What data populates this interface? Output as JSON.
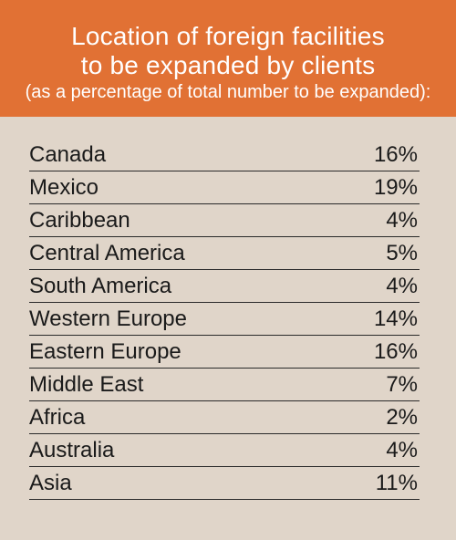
{
  "header": {
    "title_line1": "Location of foreign facilities",
    "title_line2": "to be expanded by clients",
    "subtitle": "(as a percentage of total number to be expanded):"
  },
  "colors": {
    "header_bg": "#e17134",
    "card_bg": "#e0d5c9",
    "text": "#1a1a1a"
  },
  "chart_data": {
    "type": "table",
    "title": "Location of foreign facilities to be expanded by clients",
    "subtitle": "(as a percentage of total number to be expanded):",
    "rows": [
      {
        "label": "Canada",
        "value": 16,
        "display": "16%"
      },
      {
        "label": "Mexico",
        "value": 19,
        "display": "19%"
      },
      {
        "label": "Caribbean",
        "value": 4,
        "display": "4%"
      },
      {
        "label": "Central America",
        "value": 5,
        "display": "5%"
      },
      {
        "label": "South America",
        "value": 4,
        "display": "4%"
      },
      {
        "label": "Western Europe",
        "value": 14,
        "display": "14%"
      },
      {
        "label": "Eastern Europe",
        "value": 16,
        "display": "16%"
      },
      {
        "label": "Middle East",
        "value": 7,
        "display": "7%"
      },
      {
        "label": "Africa",
        "value": 2,
        "display": "2%"
      },
      {
        "label": "Australia",
        "value": 4,
        "display": "4%"
      },
      {
        "label": "Asia",
        "value": 11,
        "display": "11%"
      }
    ]
  }
}
